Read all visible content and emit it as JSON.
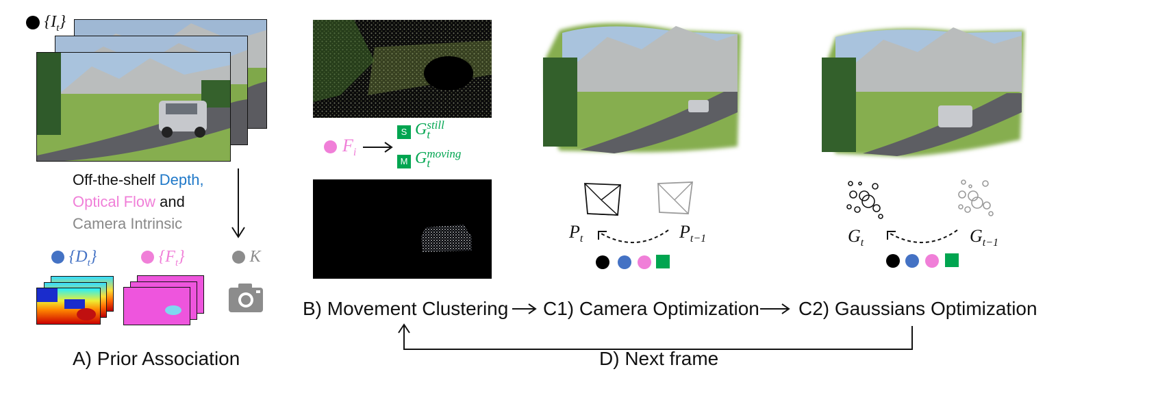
{
  "legend_items": {
    "images": "{I_t}",
    "images_base": "{I",
    "images_sub": "t",
    "images_close": "}",
    "depth_base": "{D",
    "depth_sub": "t",
    "depth_close": "}",
    "flow_base": "{F",
    "flow_sub": "t",
    "flow_close": "}",
    "intrinsic": "K"
  },
  "priors_text": {
    "line1_prefix": "Off-the-shelf ",
    "line1_depth": "Depth,",
    "line2_flow": "Optical Flow",
    "line2_suffix": " and",
    "line3": "Camera Intrinsic"
  },
  "clustering": {
    "flow_base": "F",
    "flow_sub": "i",
    "still_badge": "S",
    "still_base": "G",
    "still_sub": "t",
    "still_sup": "still",
    "moving_badge": "M",
    "moving_base": "G",
    "moving_sub": "t",
    "moving_sup": "moving"
  },
  "camera": {
    "current_base": "P",
    "current_sub": "t",
    "prev_base": "P",
    "prev_sub": "t−1"
  },
  "gaussians": {
    "current_base": "G",
    "current_sub": "t",
    "prev_base": "G",
    "prev_sub": "t−1"
  },
  "stages": {
    "a": "A) Prior Association",
    "b": "B) Movement Clustering",
    "c1": "C1) Camera Optimization",
    "c2": "C2) Gaussians Optimization",
    "d": "D) Next frame"
  },
  "colors": {
    "images": "#000000",
    "depth": "#4472c4",
    "flow": "#f07fd8",
    "intrinsic": "#8c8c8c",
    "cluster": "#00a550"
  }
}
